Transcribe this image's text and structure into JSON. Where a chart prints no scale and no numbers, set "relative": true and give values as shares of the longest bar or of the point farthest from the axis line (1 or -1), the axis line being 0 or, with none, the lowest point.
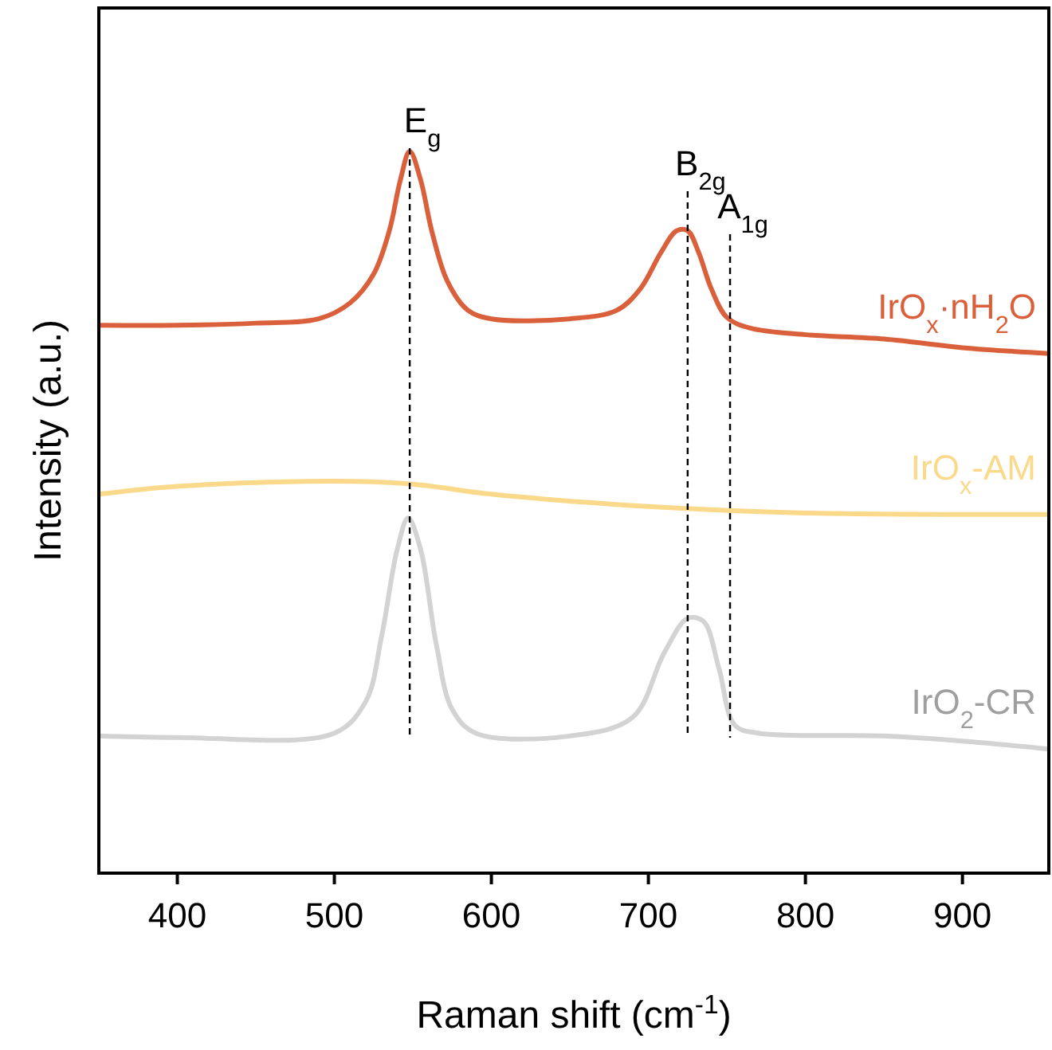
{
  "chart_data": {
    "type": "line",
    "xlabel": "Raman shift (cm$^{-1}$)",
    "ylabel": "Intensity (a.u.)",
    "relative": true,
    "xlim": [
      350,
      955
    ],
    "xticks": [
      400,
      500,
      600,
      700,
      800,
      900
    ],
    "grid": false,
    "line_style": "solid",
    "marker": "none",
    "series": [
      {
        "name": "IrO$_{x}$·nH$_{2}$O",
        "color": "#d9603b",
        "x": [
          350,
          400,
          450,
          490,
          510,
          525,
          535,
          542,
          548,
          555,
          562,
          572,
          585,
          600,
          650,
          680,
          695,
          708,
          718,
          725,
          732,
          740,
          750,
          765,
          800,
          850,
          900,
          955
        ],
        "values": [
          0.759,
          0.759,
          0.762,
          0.768,
          0.79,
          0.83,
          0.89,
          0.96,
          1.0,
          0.96,
          0.89,
          0.82,
          0.78,
          0.768,
          0.768,
          0.78,
          0.81,
          0.86,
          0.89,
          0.89,
          0.86,
          0.81,
          0.77,
          0.755,
          0.746,
          0.74,
          0.728,
          0.72
        ]
      },
      {
        "name": "IrO$_{x}$-AM",
        "color": "#fbd98a",
        "x": [
          350,
          400,
          500,
          550,
          600,
          700,
          800,
          955
        ],
        "values": [
          0.525,
          0.536,
          0.543,
          0.539,
          0.525,
          0.508,
          0.499,
          0.497
        ]
      },
      {
        "name": "IrO$_{2}$-CR",
        "color": "#d3d3d3",
        "x": [
          350,
          400,
          500,
          520,
          530,
          540,
          547,
          555,
          565,
          575,
          590,
          650,
          690,
          710,
          725,
          735,
          745,
          755,
          770,
          850,
          900,
          955
        ],
        "values": [
          0.19,
          0.188,
          0.194,
          0.238,
          0.327,
          0.448,
          0.492,
          0.448,
          0.316,
          0.227,
          0.194,
          0.19,
          0.216,
          0.305,
          0.353,
          0.349,
          0.283,
          0.205,
          0.194,
          0.19,
          0.183,
          0.172
        ]
      }
    ],
    "ref_lines": [
      {
        "axis": "x",
        "value": 548,
        "label": "E$_{g}$",
        "line_style": "dashed",
        "color": "#000000"
      },
      {
        "axis": "x",
        "value": 725,
        "label": "B$_{2g}$",
        "line_style": "dashed",
        "color": "#000000"
      },
      {
        "axis": "x",
        "value": 752,
        "label": "A$_{1g}$",
        "line_style": "dashed",
        "color": "#000000"
      }
    ]
  }
}
